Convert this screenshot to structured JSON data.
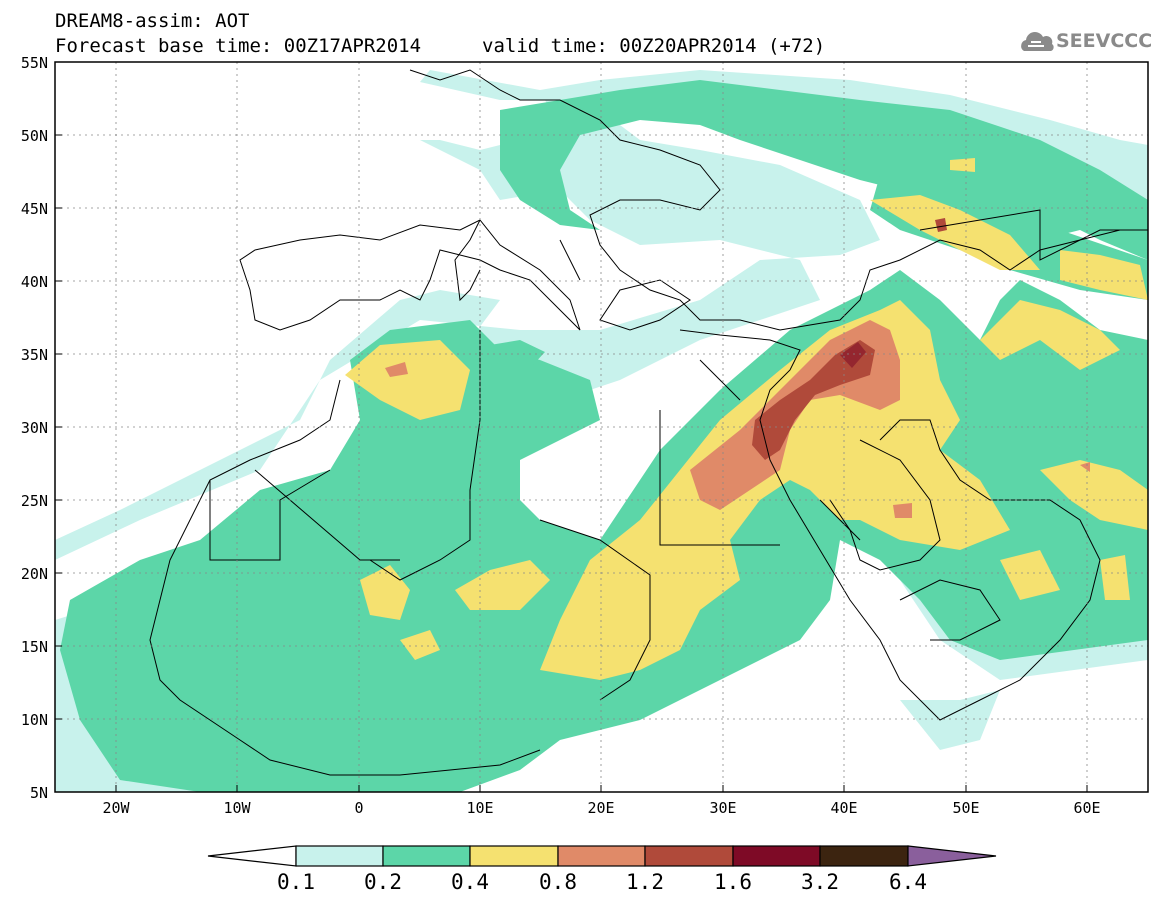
{
  "header": {
    "title_line1": "DREAM8-assim: AOT",
    "title_line2": "Forecast base time: 00Z17APR2014",
    "valid_time": "valid time: 00Z20APR2014 (+72)",
    "logo_text": "SEEVCCC"
  },
  "map": {
    "lon_range": [
      "25W",
      "65E"
    ],
    "lat_range": [
      "5N",
      "55N"
    ],
    "lat_labels": [
      "55N",
      "50N",
      "45N",
      "40N",
      "35N",
      "30N",
      "25N",
      "20N",
      "15N",
      "10N",
      "5N"
    ],
    "lon_labels": [
      "20W",
      "10W",
      "0",
      "10E",
      "20E",
      "30E",
      "40E",
      "50E",
      "60E"
    ]
  },
  "colorbar": {
    "labels": [
      "0.1",
      "0.2",
      "0.4",
      "0.8",
      "1.2",
      "1.6",
      "3.2",
      "6.4"
    ],
    "colors": [
      "#c8f2ec",
      "#5cd6a8",
      "#f5e170",
      "#e08a68",
      "#b04a3a",
      "#7e0a26",
      "#3c2410",
      "#8a5f9c"
    ]
  },
  "colors": {
    "level_01_02": "#c8f2ec",
    "level_02_04": "#5cd6a8",
    "level_04_08": "#f5e170",
    "level_08_12": "#e08a68",
    "level_12_16": "#b04a3a",
    "level_16_32": "#7e0a26"
  }
}
